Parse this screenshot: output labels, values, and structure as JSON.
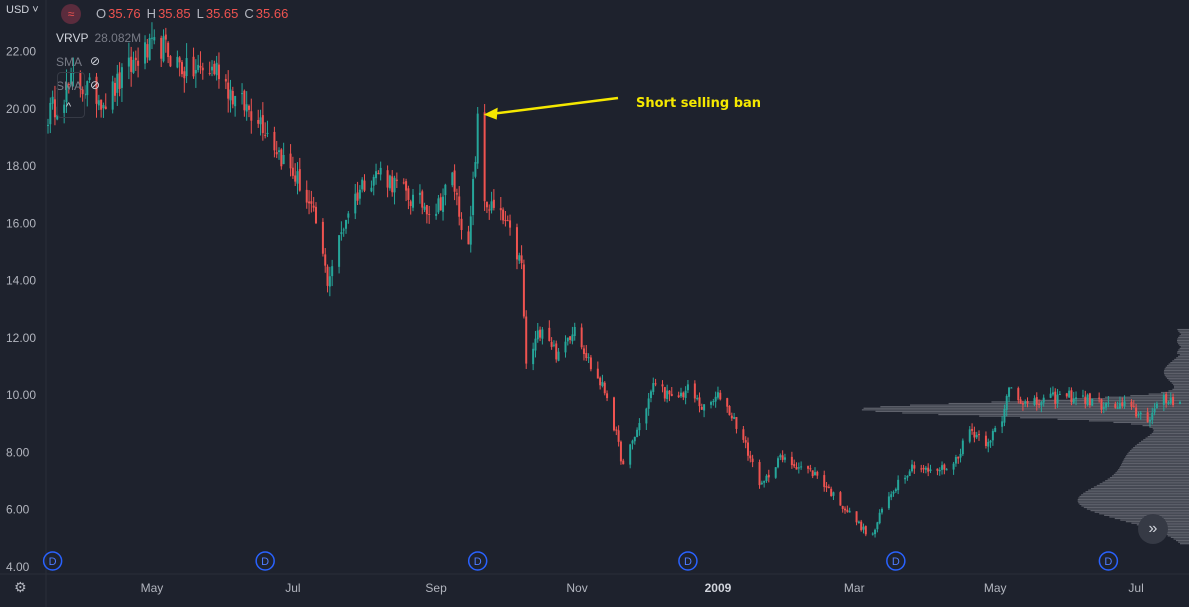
{
  "header": {
    "currency": "USD",
    "ohlc": {
      "o_label": "O",
      "o": "35.76",
      "h_label": "H",
      "h": "35.85",
      "l_label": "L",
      "l": "35.65",
      "c_label": "C",
      "c": "35.66"
    },
    "indicators": [
      {
        "name": "VRVP",
        "value": "28.082M"
      },
      {
        "name": "SMA",
        "value": ""
      },
      {
        "name": "SMA",
        "value": ""
      }
    ]
  },
  "colors": {
    "up": "#26a69a",
    "down": "#ef5350",
    "background": "#1e222d",
    "profile": "#9598a1",
    "annotation": "#f5e800",
    "dividend": "#2962ff"
  },
  "chart_data": {
    "type": "candlestick",
    "ylim": [
      4.0,
      23.0
    ],
    "y_ticks": [
      "22.00",
      "20.00",
      "18.00",
      "16.00",
      "14.00",
      "12.00",
      "10.00",
      "8.00",
      "6.00",
      "4.00"
    ],
    "x_ticks": [
      {
        "label": "May",
        "date": "2008-05-01"
      },
      {
        "label": "Jul",
        "date": "2008-07-01"
      },
      {
        "label": "Sep",
        "date": "2008-09-01"
      },
      {
        "label": "Nov",
        "date": "2008-11-01"
      },
      {
        "label": "2009",
        "date": "2009-01-01"
      },
      {
        "label": "Mar",
        "date": "2009-03-01"
      },
      {
        "label": "May",
        "date": "2009-05-01"
      },
      {
        "label": "Jul",
        "date": "2009-07-01"
      }
    ],
    "x_range": [
      "2008-03-17",
      "2009-07-20"
    ],
    "anchors": [
      [
        "2008-03-17",
        19.8
      ],
      [
        "2008-03-28",
        21.0
      ],
      [
        "2008-04-11",
        20.3
      ],
      [
        "2008-04-25",
        21.8
      ],
      [
        "2008-05-05",
        22.2
      ],
      [
        "2008-05-16",
        21.3
      ],
      [
        "2008-05-30",
        21.4
      ],
      [
        "2008-06-06",
        20.3
      ],
      [
        "2008-06-16",
        19.8
      ],
      [
        "2008-06-27",
        18.2
      ],
      [
        "2008-07-04",
        17.4
      ],
      [
        "2008-07-11",
        16.0
      ],
      [
        "2008-07-16",
        14.0
      ],
      [
        "2008-07-25",
        16.5
      ],
      [
        "2008-08-01",
        17.5
      ],
      [
        "2008-08-08",
        17.8
      ],
      [
        "2008-08-22",
        16.8
      ],
      [
        "2008-09-01",
        16.5
      ],
      [
        "2008-09-08",
        17.6
      ],
      [
        "2008-09-15",
        15.0
      ],
      [
        "2008-09-19",
        19.5
      ],
      [
        "2008-09-22",
        16.8
      ],
      [
        "2008-10-01",
        16.0
      ],
      [
        "2008-10-08",
        14.5
      ],
      [
        "2008-10-10",
        11.0
      ],
      [
        "2008-10-17",
        12.5
      ],
      [
        "2008-10-24",
        11.3
      ],
      [
        "2008-10-31",
        12.5
      ],
      [
        "2008-11-07",
        11.0
      ],
      [
        "2008-11-14",
        10.0
      ],
      [
        "2008-11-21",
        7.5
      ],
      [
        "2008-11-28",
        9.0
      ],
      [
        "2008-12-05",
        10.5
      ],
      [
        "2008-12-12",
        9.8
      ],
      [
        "2008-12-19",
        10.2
      ],
      [
        "2008-12-26",
        9.5
      ],
      [
        "2009-01-02",
        10.0
      ],
      [
        "2009-01-09",
        9.0
      ],
      [
        "2009-01-20",
        6.8
      ],
      [
        "2009-01-27",
        7.8
      ],
      [
        "2009-02-06",
        7.5
      ],
      [
        "2009-02-13",
        7.2
      ],
      [
        "2009-02-20",
        6.5
      ],
      [
        "2009-03-02",
        5.6
      ],
      [
        "2009-03-06",
        5.2
      ],
      [
        "2009-03-09",
        5.1
      ],
      [
        "2009-03-13",
        6.0
      ],
      [
        "2009-03-20",
        7.0
      ],
      [
        "2009-03-27",
        7.6
      ],
      [
        "2009-04-03",
        7.3
      ],
      [
        "2009-04-13",
        7.6
      ],
      [
        "2009-04-20",
        8.8
      ],
      [
        "2009-04-27",
        8.4
      ],
      [
        "2009-05-04",
        9.0
      ],
      [
        "2009-05-07",
        10.4
      ],
      [
        "2009-05-15",
        9.6
      ],
      [
        "2009-05-22",
        9.8
      ],
      [
        "2009-06-01",
        10.0
      ],
      [
        "2009-06-12",
        9.8
      ],
      [
        "2009-06-19",
        9.6
      ],
      [
        "2009-06-26",
        9.6
      ],
      [
        "2009-07-06",
        9.2
      ],
      [
        "2009-07-13",
        9.8
      ],
      [
        "2009-07-20",
        9.9
      ]
    ],
    "volume_profile": {
      "price_min": 4.8,
      "price_max": 12.3,
      "peak_price": 9.5,
      "peak_secondary": 6.2
    },
    "dividends": [
      {
        "label": "D",
        "date": "2008-03-19"
      },
      {
        "label": "D",
        "date": "2008-06-19"
      },
      {
        "label": "D",
        "date": "2008-09-19"
      },
      {
        "label": "D",
        "date": "2008-12-19"
      },
      {
        "label": "D",
        "date": "2009-03-19"
      },
      {
        "label": "D",
        "date": "2009-06-19"
      }
    ],
    "annotation": {
      "text": "Short selling ban",
      "date": "2008-09-19",
      "price": 19.8
    },
    "grid": false
  },
  "ui": {
    "forward_icon": "»",
    "settings_icon": "⚙",
    "collapse_icon": "^",
    "eye_icon": "⊘",
    "logo_icon": "≈"
  }
}
